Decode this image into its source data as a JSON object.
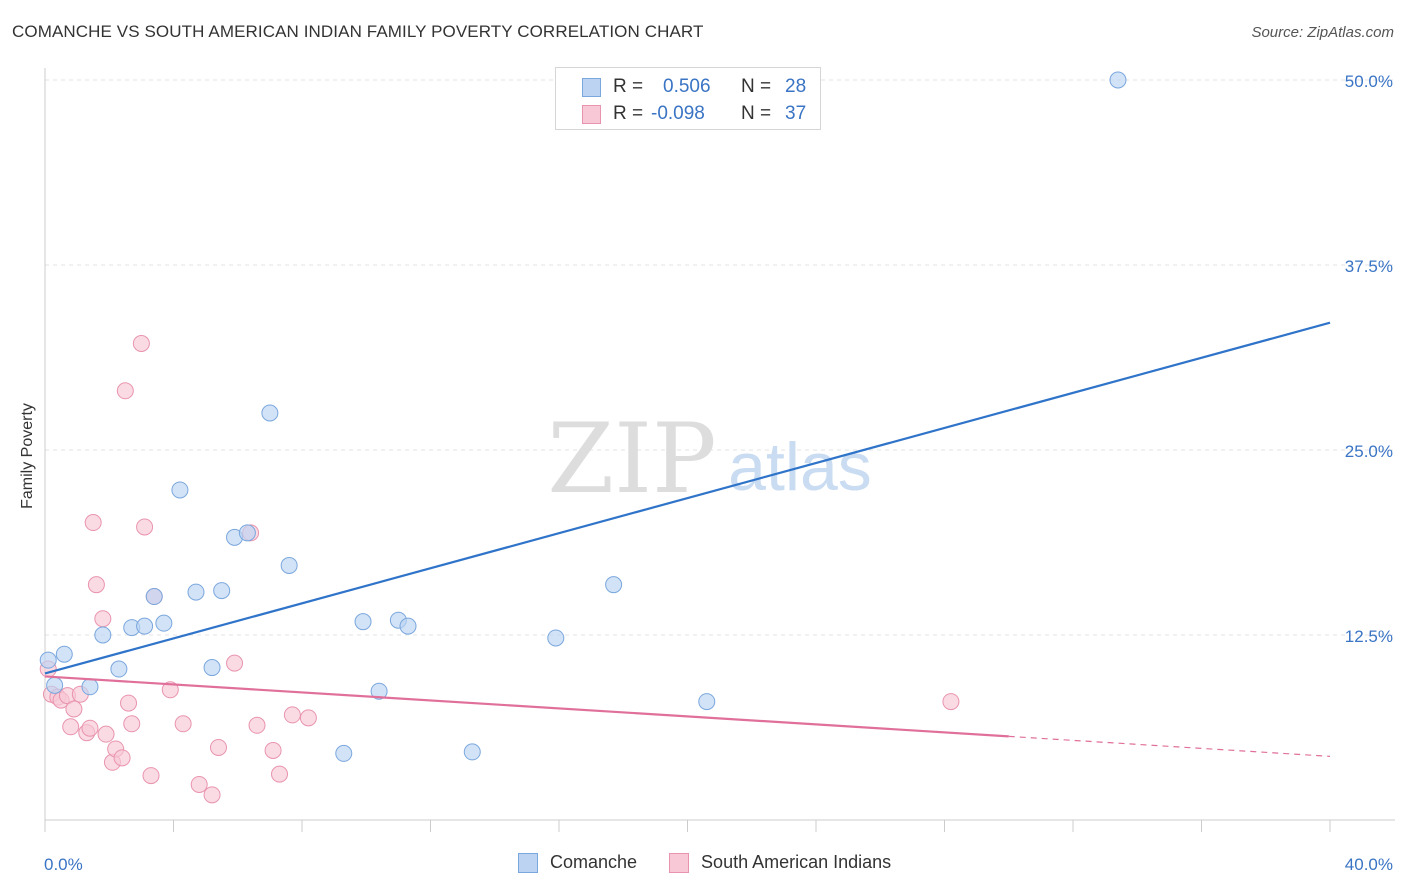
{
  "header": {
    "title": "COMANCHE VS SOUTH AMERICAN INDIAN FAMILY POVERTY CORRELATION CHART",
    "source": "Source: ZipAtlas.com"
  },
  "watermark": {
    "zip": "ZIP",
    "atlas": "atlas"
  },
  "legend": {
    "series": [
      {
        "r_label": "R =",
        "r_value": "0.506",
        "n_label": "N =",
        "n_value": "28"
      },
      {
        "r_label": "R =",
        "r_value": "-0.098",
        "n_label": "N =",
        "n_value": "37"
      }
    ]
  },
  "bottom_legend": {
    "items": [
      "Comanche",
      "South American Indians"
    ]
  },
  "colors": {
    "blue_fill": "#bcd4f2",
    "blue_stroke": "#7aa7dd",
    "blue_line": "#2f74c9",
    "pink_fill": "#f8c8d6",
    "pink_stroke": "#e994ae",
    "pink_line": "#e0709a",
    "axis_text": "#3a74c4",
    "grid": "#e3e3e3"
  },
  "chart_data": {
    "type": "scatter",
    "title": "COMANCHE VS SOUTH AMERICAN INDIAN FAMILY POVERTY CORRELATION CHART",
    "xlabel": "",
    "ylabel": "Family Poverty",
    "xlim": [
      0,
      40
    ],
    "ylim": [
      0,
      52
    ],
    "x_tick_labels": [
      "0.0%",
      "40.0%"
    ],
    "y_ticks": [
      12.5,
      25.0,
      37.5,
      50.0
    ],
    "y_tick_labels": [
      "12.5%",
      "25.0%",
      "37.5%",
      "50.0%"
    ],
    "grid": true,
    "legend_position": "top-center",
    "series": [
      {
        "name": "Comanche",
        "r": 0.506,
        "n": 28,
        "points": [
          [
            0.1,
            10.8
          ],
          [
            0.6,
            11.2
          ],
          [
            1.4,
            9.0
          ],
          [
            1.8,
            12.5
          ],
          [
            2.3,
            10.2
          ],
          [
            2.7,
            13.0
          ],
          [
            3.1,
            13.1
          ],
          [
            3.4,
            15.1
          ],
          [
            3.7,
            13.3
          ],
          [
            4.2,
            22.3
          ],
          [
            4.7,
            15.4
          ],
          [
            5.2,
            10.3
          ],
          [
            5.5,
            15.5
          ],
          [
            5.9,
            19.1
          ],
          [
            6.3,
            19.4
          ],
          [
            7.0,
            27.5
          ],
          [
            7.6,
            17.2
          ],
          [
            9.3,
            4.5
          ],
          [
            9.9,
            13.4
          ],
          [
            10.4,
            8.7
          ],
          [
            11.0,
            13.5
          ],
          [
            11.3,
            13.1
          ],
          [
            13.3,
            4.6
          ],
          [
            15.9,
            12.3
          ],
          [
            17.7,
            15.9
          ],
          [
            20.6,
            8.0
          ],
          [
            33.4,
            50.0
          ],
          [
            0.3,
            9.1
          ]
        ],
        "trend": {
          "x0": 0,
          "y0": 9.9,
          "x1": 40,
          "y1": 33.6,
          "dashed_from": null
        }
      },
      {
        "name": "South American Indians",
        "r": -0.098,
        "n": 37,
        "points": [
          [
            0.1,
            10.2
          ],
          [
            0.2,
            8.5
          ],
          [
            0.4,
            8.3
          ],
          [
            0.5,
            8.1
          ],
          [
            0.7,
            8.4
          ],
          [
            0.8,
            6.3
          ],
          [
            0.9,
            7.5
          ],
          [
            1.1,
            8.5
          ],
          [
            1.3,
            5.9
          ],
          [
            1.4,
            6.2
          ],
          [
            1.5,
            20.1
          ],
          [
            1.6,
            15.9
          ],
          [
            1.8,
            13.6
          ],
          [
            1.9,
            5.8
          ],
          [
            2.1,
            3.9
          ],
          [
            2.2,
            4.8
          ],
          [
            2.4,
            4.2
          ],
          [
            2.5,
            29.0
          ],
          [
            2.6,
            7.9
          ],
          [
            2.7,
            6.5
          ],
          [
            3.0,
            32.2
          ],
          [
            3.1,
            19.8
          ],
          [
            3.3,
            3.0
          ],
          [
            3.4,
            15.1
          ],
          [
            3.9,
            8.8
          ],
          [
            4.3,
            6.5
          ],
          [
            4.8,
            2.4
          ],
          [
            5.2,
            1.7
          ],
          [
            5.4,
            4.9
          ],
          [
            5.9,
            10.6
          ],
          [
            6.4,
            19.4
          ],
          [
            6.6,
            6.4
          ],
          [
            7.1,
            4.7
          ],
          [
            7.3,
            3.1
          ],
          [
            7.7,
            7.1
          ],
          [
            8.2,
            6.9
          ],
          [
            28.2,
            8.0
          ]
        ],
        "trend": {
          "x0": 0,
          "y0": 9.7,
          "x1": 40,
          "y1": 4.3,
          "dashed_from": 30
        }
      }
    ]
  }
}
